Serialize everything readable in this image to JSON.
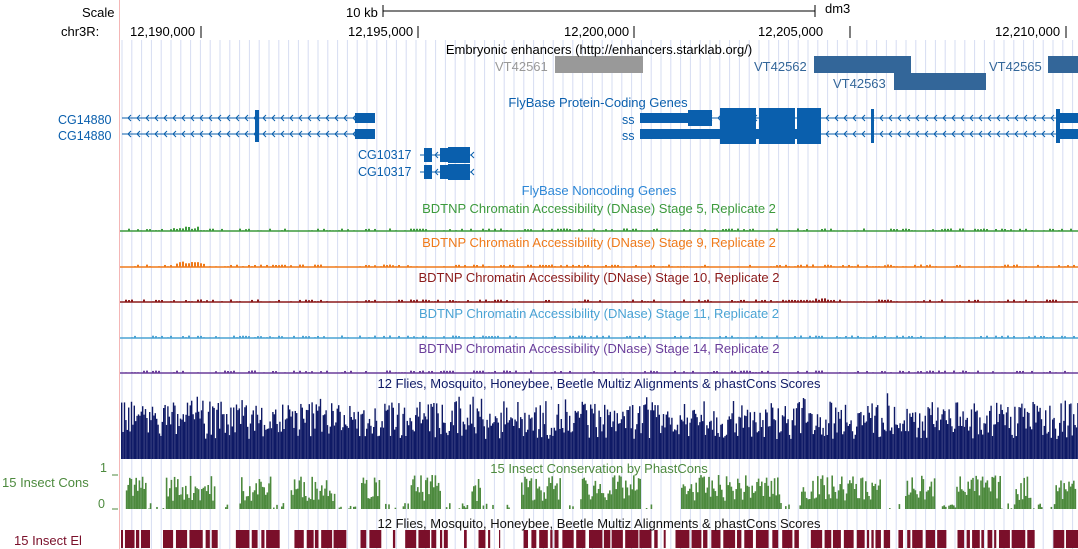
{
  "ruler": {
    "scale_label": "Scale",
    "scale_bar_label": "10 kb",
    "assembly": "dm3",
    "chrom_label": "chr3R:",
    "positions": [
      "12,190,000",
      "12,195,000",
      "12,200,000",
      "12,205,000",
      "12,210,000"
    ]
  },
  "tracks": {
    "enhancers": {
      "title": "Embryonic enhancers (http://enhancers.starklab.org/)",
      "items": [
        "VT42561",
        "VT42562",
        "VT42563",
        "VT42565"
      ],
      "color": "#336699",
      "gray": "#999999"
    },
    "protein_genes": {
      "title": "FlyBase Protein-Coding Genes",
      "color": "#0a5fad",
      "genes": [
        "CG14880",
        "CG14880",
        "CG10317",
        "CG10317",
        "ss",
        "ss"
      ]
    },
    "noncoding": {
      "title": "FlyBase Noncoding Genes",
      "color": "#2d87d6"
    },
    "dnase": [
      {
        "title": "BDTNP Chromatin Accessibility (DNase) Stage 5, Replicate 2",
        "color": "#3c9a3c"
      },
      {
        "title": "BDTNP Chromatin Accessibility (DNase) Stage 9, Replicate 2",
        "color": "#ef7a1a"
      },
      {
        "title": "BDTNP Chromatin Accessibility (DNase) Stage 10, Replicate 2",
        "color": "#8b1a1a"
      },
      {
        "title": "BDTNP Chromatin Accessibility (DNase) Stage 11, Replicate 2",
        "color": "#4aa3d4"
      },
      {
        "title": "BDTNP Chromatin Accessibility (DNase) Stage 14, Replicate 2",
        "color": "#6a3d9a"
      }
    ],
    "multiz": {
      "title": "12 Flies, Mosquito, Honeybee, Beetle Multiz Alignments & phastCons Scores",
      "color": "#0f1a66"
    },
    "phastcons": {
      "side_label": "15 Insect Cons",
      "title": "15 Insect Conservation by PhastCons",
      "axis_max": "1",
      "axis_min": "0",
      "color": "#4d8a3e"
    },
    "elements": {
      "side_label": "15 Insect El",
      "title": "12 Flies, Mosquito, Honeybee, Beetle Multiz Alignments & phastCons Scores",
      "color": "#7a0f2a"
    }
  }
}
